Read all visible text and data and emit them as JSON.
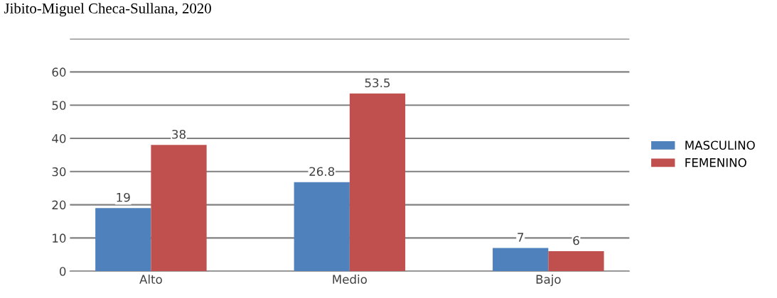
{
  "chart_data": {
    "type": "bar",
    "title": "Jibito-Miguel Checa-Sullana, 2020",
    "categories": [
      "Alto",
      "Medio",
      "Bajo"
    ],
    "series": [
      {
        "name": "MASCULINO",
        "color": "#4f81bd",
        "values": [
          19,
          26.8,
          7
        ]
      },
      {
        "name": "FEMENINO",
        "color": "#c0504d",
        "values": [
          38,
          53.5,
          6
        ]
      }
    ],
    "ylim": [
      0,
      70
    ],
    "yticks": [
      0,
      10,
      20,
      30,
      40,
      50,
      60,
      {
        "value": 70,
        "label": null
      }
    ],
    "grid": "y",
    "legend": "right",
    "data_labels": true
  }
}
